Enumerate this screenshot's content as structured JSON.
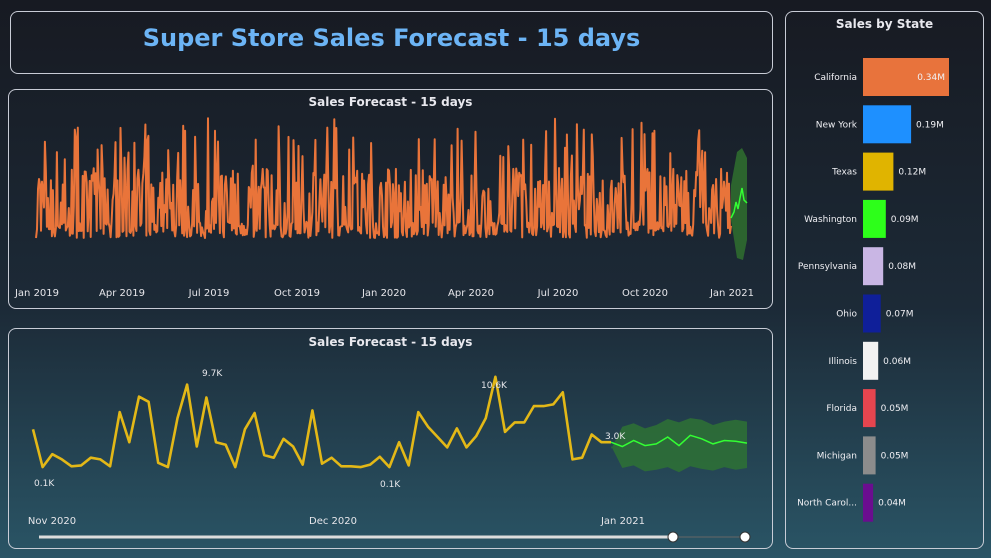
{
  "header": {
    "title": "Super Store Sales Forecast - 15 days"
  },
  "forecast_long": {
    "title": "Sales Forecast - 15 days",
    "x_ticks": [
      "Jan 2019",
      "Apr 2019",
      "Jul 2019",
      "Oct 2019",
      "Jan 2020",
      "Apr 2020",
      "Jul 2020",
      "Oct 2020",
      "Jan 2021"
    ],
    "colors": {
      "actual": "#e9743a",
      "forecast": "#33ff33",
      "band": "#2f6b2f"
    }
  },
  "forecast_short": {
    "title": "Sales Forecast - 15 days",
    "x_ticks": [
      "Nov 2020",
      "Dec 2020",
      "Jan 2021"
    ],
    "annotations": [
      "9.7K",
      "0.1K",
      "10.6K",
      "0.1K",
      "3.0K"
    ],
    "colors": {
      "actual": "#e3b817",
      "forecast": "#33ff33",
      "band": "#2d6f36"
    }
  },
  "chart_data": [
    {
      "type": "line",
      "title": "Sales Forecast - 15 days",
      "x_ticks": [
        "Jan 2019",
        "Apr 2019",
        "Jul 2019",
        "Oct 2019",
        "Jan 2020",
        "Apr 2020",
        "Jul 2020",
        "Oct 2020",
        "Jan 2021"
      ],
      "series": []
    },
    {
      "type": "line",
      "title": "Sales Forecast - 15 days",
      "x_ticks": [
        "Nov 2020",
        "Dec 2020",
        "Jan 2021"
      ],
      "series": [
        {
          "values": [
            4.5,
            0.1,
            1.6,
            1.0,
            0.2,
            0.3,
            1.2,
            1.0,
            0.2,
            6.5,
            3.0,
            8.3,
            7.7,
            0.6,
            0.1,
            5.8,
            9.7,
            2.5,
            8.2,
            3.0,
            2.7,
            0.1,
            4.5,
            6.4,
            1.5,
            1.2,
            3.4,
            2.5,
            0.4,
            6.7,
            0.5,
            1.2,
            0.2,
            0.2,
            0.1,
            0.4,
            1.3,
            0.1,
            3.0,
            0.3,
            6.5,
            4.8,
            3.6,
            2.4,
            4.6,
            2.4,
            3.7,
            5.8,
            10.6,
            4.2,
            5.3,
            5.3,
            7.2,
            7.2,
            7.4,
            8.8,
            1.0,
            1.2,
            3.9,
            3.0,
            3.0
          ]
        },
        {
          "values": [
            3.0,
            2.5,
            3.2,
            2.6,
            2.8,
            3.6,
            2.6,
            3.8,
            3.4,
            2.8,
            3.2,
            3.1,
            2.9
          ]
        }
      ]
    },
    {
      "type": "bar",
      "orientation": "horizontal",
      "title": "Sales by State",
      "categories": [
        "California",
        "New York",
        "Texas",
        "Washington",
        "Pennsylvania",
        "Ohio",
        "Illinois",
        "Florida",
        "Michigan",
        "North Carol..."
      ],
      "values": [
        0.34,
        0.19,
        0.12,
        0.09,
        0.08,
        0.07,
        0.06,
        0.05,
        0.05,
        0.04
      ],
      "labels": [
        "0.34M",
        "0.19M",
        "0.12M",
        "0.09M",
        "0.08M",
        "0.07M",
        "0.06M",
        "0.05M",
        "0.05M",
        "0.04M"
      ],
      "colors": [
        "#e8733c",
        "#1e90ff",
        "#e0b400",
        "#2dff1a",
        "#c9b6e4",
        "#0f1f99",
        "#f2f2f2",
        "#e6454f",
        "#8c8c8c",
        "#6a0d8f"
      ]
    }
  ],
  "states_panel": {
    "title": "Sales by State"
  }
}
